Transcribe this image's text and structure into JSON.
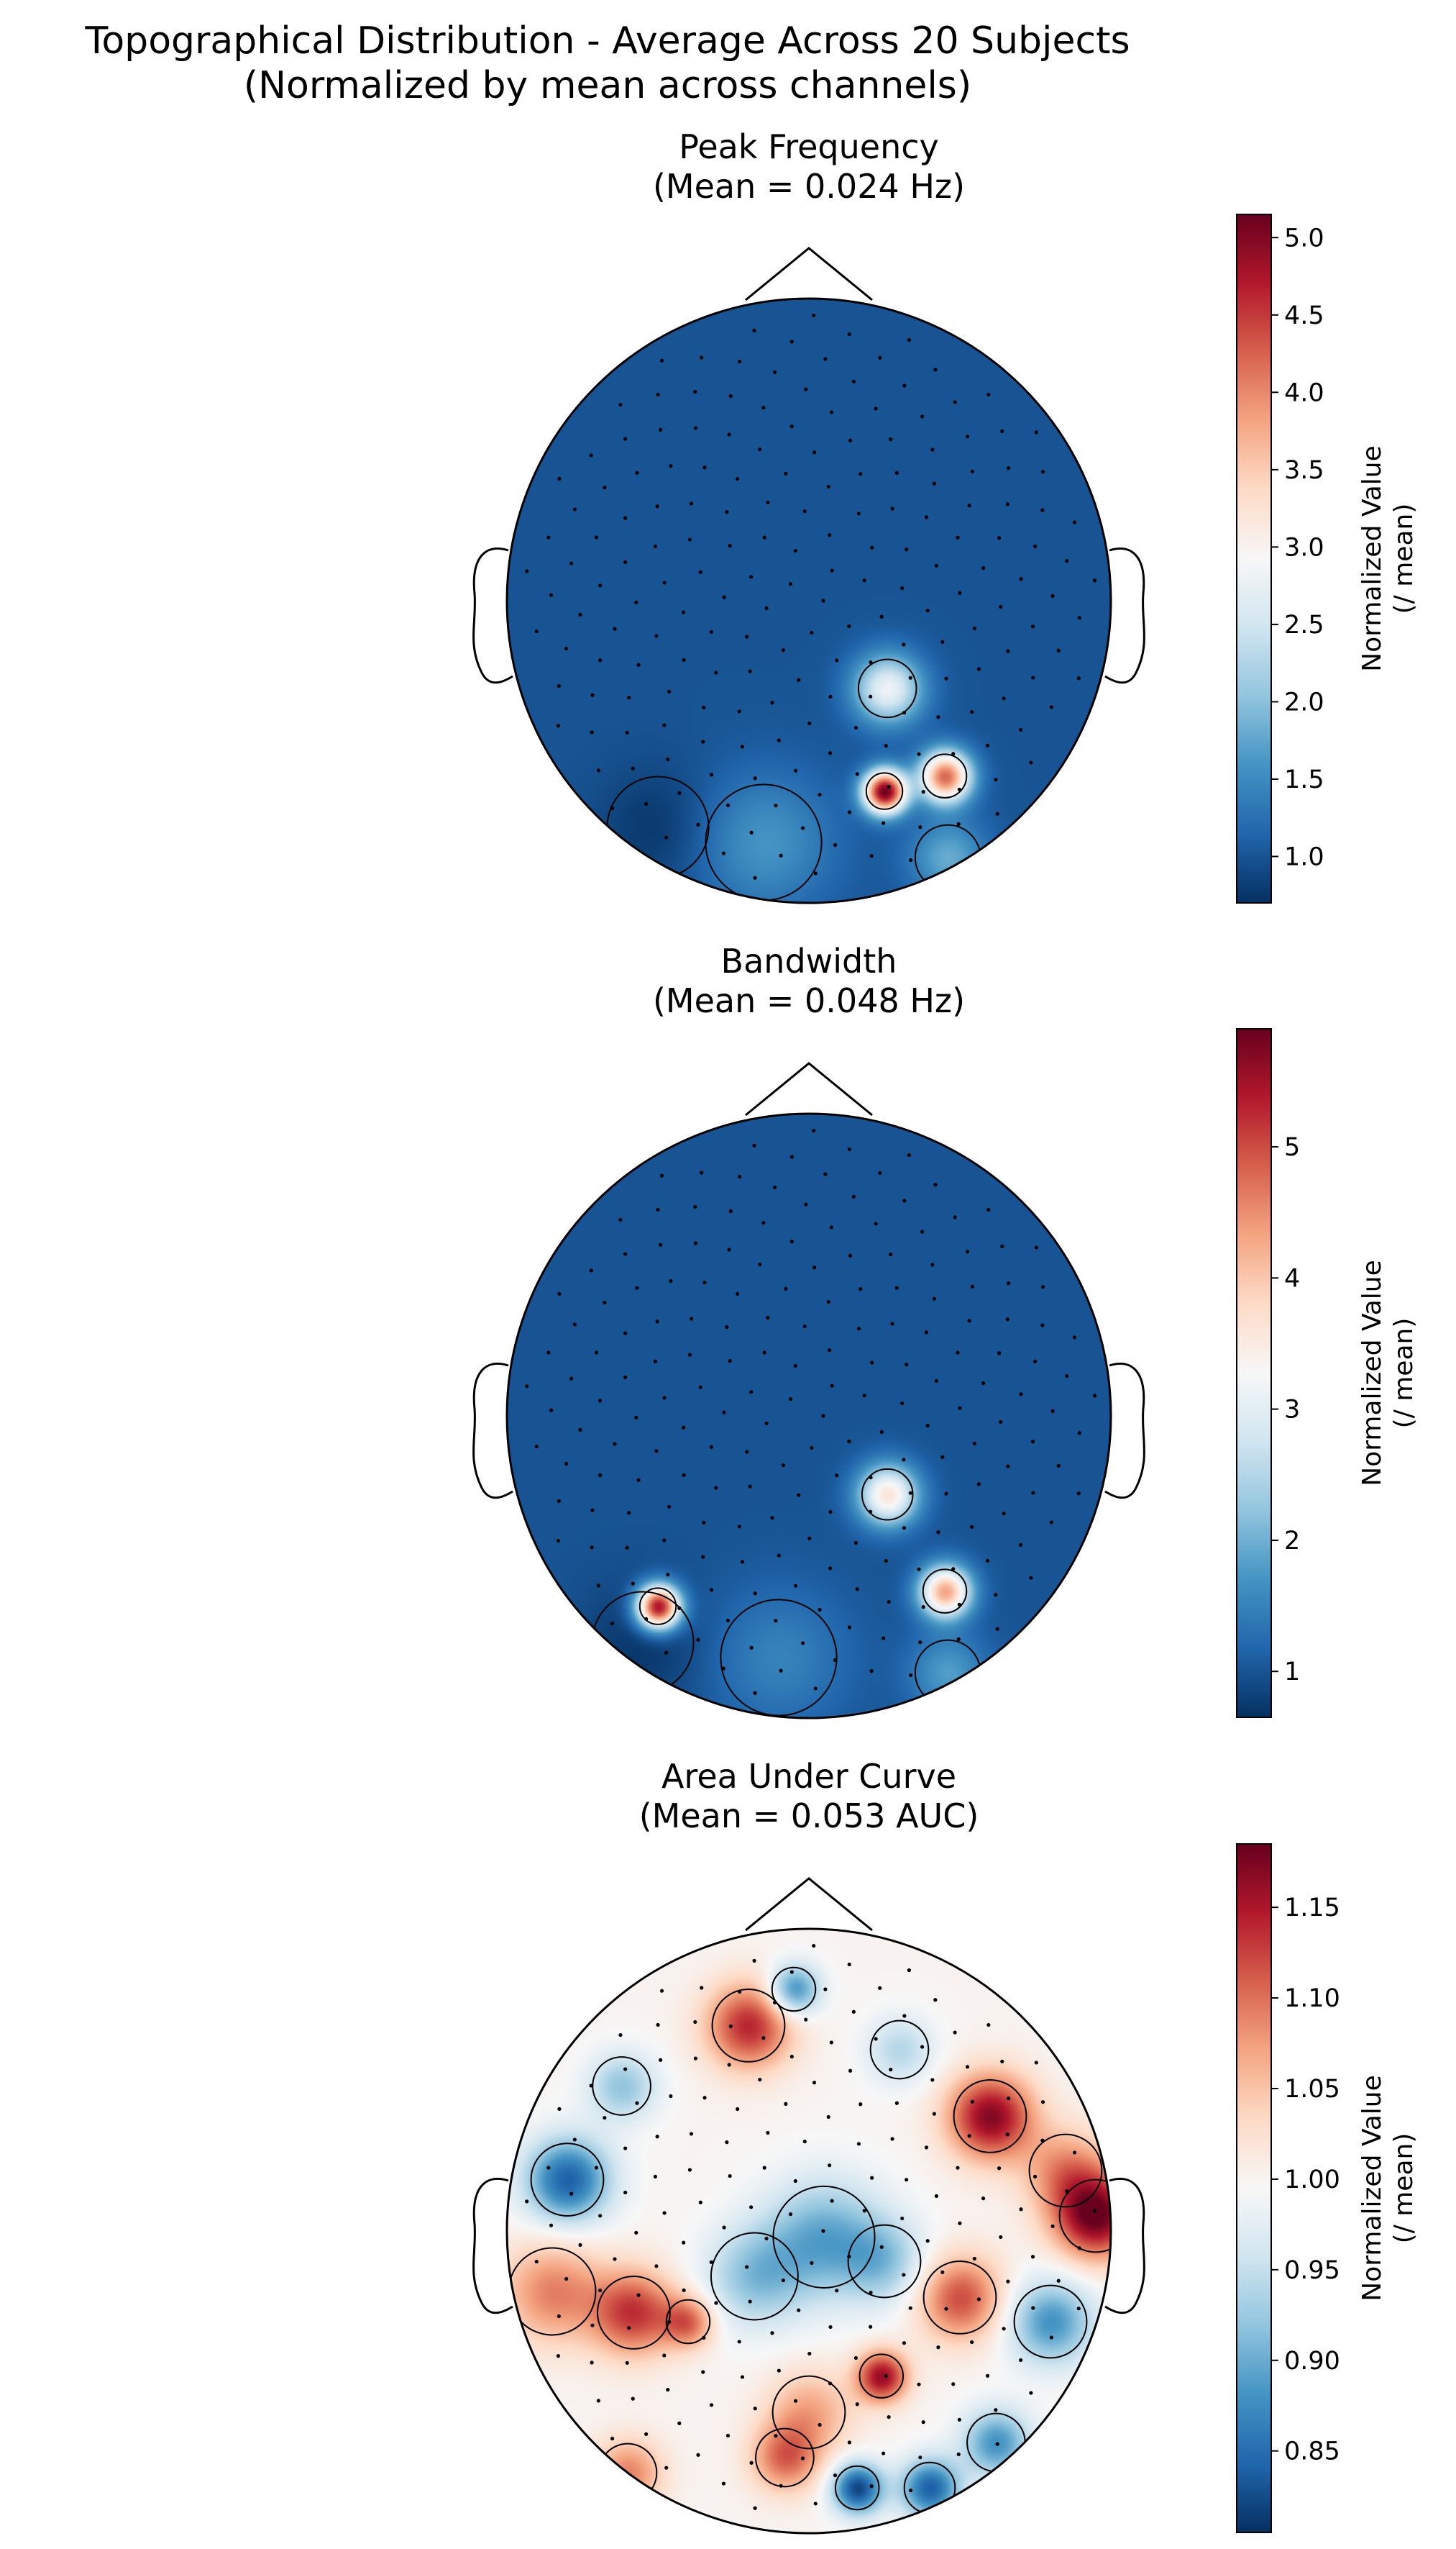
{
  "title": "Topographical Distribution - Average Across 20 Subjects",
  "subtitle": "(Normalized by mean across channels)",
  "colors": {
    "low": "#053061",
    "mid": "#f7f7f7",
    "high": "#67001f",
    "colormap": "RdBu_r"
  },
  "chart_data": [
    {
      "type": "heatmap",
      "title": "Peak Frequency",
      "subtitle": "(Mean = 0.024 Hz)",
      "colorbar_label": [
        "Normalized Value",
        "(/ mean)"
      ],
      "vmin": 0.7,
      "vmax": 5.15,
      "ticks": [
        1.0,
        1.5,
        2.0,
        2.5,
        3.0,
        3.5,
        4.0,
        4.5,
        5.0
      ],
      "tick_labels": [
        "1.0",
        "1.5",
        "2.0",
        "2.5",
        "3.0",
        "3.5",
        "4.0",
        "4.5",
        "5.0"
      ],
      "baseline": 1.0,
      "hotspots": [
        {
          "x": 0.25,
          "y": -0.63,
          "value": 5.1,
          "spread": 0.05
        },
        {
          "x": 0.45,
          "y": -0.58,
          "value": 4.2,
          "spread": 0.06
        },
        {
          "x": 0.26,
          "y": -0.29,
          "value": 2.8,
          "spread": 0.08
        },
        {
          "x": 0.46,
          "y": -0.85,
          "value": 1.8,
          "spread": 0.09
        },
        {
          "x": -0.15,
          "y": -0.8,
          "value": 1.6,
          "spread": 0.16
        },
        {
          "x": -0.5,
          "y": -0.75,
          "value": 0.75,
          "spread": 0.14
        }
      ]
    },
    {
      "type": "heatmap",
      "title": "Bandwidth",
      "subtitle": "(Mean = 0.048 Hz)",
      "colorbar_label": [
        "Normalized Value",
        "(/ mean)"
      ],
      "vmin": 0.65,
      "vmax": 5.9,
      "ticks": [
        1,
        2,
        3,
        4,
        5
      ],
      "tick_labels": [
        "1",
        "2",
        "3",
        "4",
        "5"
      ],
      "baseline": 1.0,
      "hotspots": [
        {
          "x": -0.5,
          "y": -0.63,
          "value": 5.6,
          "spread": 0.05
        },
        {
          "x": 0.45,
          "y": -0.58,
          "value": 4.3,
          "spread": 0.06
        },
        {
          "x": 0.26,
          "y": -0.26,
          "value": 3.6,
          "spread": 0.07
        },
        {
          "x": 0.46,
          "y": -0.85,
          "value": 1.8,
          "spread": 0.09
        },
        {
          "x": -0.1,
          "y": -0.8,
          "value": 1.5,
          "spread": 0.16
        },
        {
          "x": -0.55,
          "y": -0.75,
          "value": 0.7,
          "spread": 0.14
        }
      ]
    },
    {
      "type": "heatmap",
      "title": "Area Under Curve",
      "subtitle": "(Mean = 0.053 AUC)",
      "colorbar_label": [
        "Normalized Value",
        "(/ mean)"
      ],
      "vmin": 0.805,
      "vmax": 1.185,
      "ticks": [
        0.85,
        0.9,
        0.95,
        1.0,
        1.05,
        1.1,
        1.15
      ],
      "tick_labels": [
        "0.85",
        "0.90",
        "0.95",
        "1.00",
        "1.05",
        "1.10",
        "1.15"
      ],
      "baseline": 1.0,
      "hotspots": [
        {
          "x": -0.2,
          "y": 0.68,
          "value": 1.14,
          "spread": 0.1
        },
        {
          "x": -0.05,
          "y": 0.8,
          "value": 0.87,
          "spread": 0.06
        },
        {
          "x": 0.6,
          "y": 0.38,
          "value": 1.17,
          "spread": 0.1
        },
        {
          "x": 0.95,
          "y": 0.05,
          "value": 1.18,
          "spread": 0.1
        },
        {
          "x": 0.85,
          "y": 0.2,
          "value": 1.08,
          "spread": 0.1
        },
        {
          "x": -0.8,
          "y": 0.17,
          "value": 0.84,
          "spread": 0.1
        },
        {
          "x": -0.62,
          "y": 0.48,
          "value": 0.92,
          "spread": 0.08
        },
        {
          "x": -0.58,
          "y": -0.27,
          "value": 1.13,
          "spread": 0.1
        },
        {
          "x": -0.4,
          "y": -0.3,
          "value": 1.1,
          "spread": 0.06
        },
        {
          "x": -0.85,
          "y": -0.2,
          "value": 1.09,
          "spread": 0.12
        },
        {
          "x": -0.18,
          "y": -0.15,
          "value": 0.92,
          "spread": 0.12
        },
        {
          "x": 0.05,
          "y": -0.02,
          "value": 0.9,
          "spread": 0.14
        },
        {
          "x": 0.25,
          "y": -0.1,
          "value": 0.93,
          "spread": 0.1
        },
        {
          "x": 0.5,
          "y": -0.22,
          "value": 1.12,
          "spread": 0.1
        },
        {
          "x": 0.24,
          "y": -0.48,
          "value": 1.16,
          "spread": 0.06
        },
        {
          "x": 0.0,
          "y": -0.6,
          "value": 1.07,
          "spread": 0.1
        },
        {
          "x": -0.08,
          "y": -0.75,
          "value": 1.1,
          "spread": 0.08
        },
        {
          "x": 0.16,
          "y": -0.85,
          "value": 0.82,
          "spread": 0.06
        },
        {
          "x": 0.4,
          "y": -0.85,
          "value": 0.84,
          "spread": 0.07
        },
        {
          "x": 0.62,
          "y": -0.7,
          "value": 0.88,
          "spread": 0.08
        },
        {
          "x": -0.6,
          "y": -0.8,
          "value": 1.09,
          "spread": 0.08
        },
        {
          "x": 0.3,
          "y": 0.6,
          "value": 0.94,
          "spread": 0.08
        },
        {
          "x": 0.8,
          "y": -0.3,
          "value": 0.88,
          "spread": 0.1
        }
      ]
    }
  ]
}
